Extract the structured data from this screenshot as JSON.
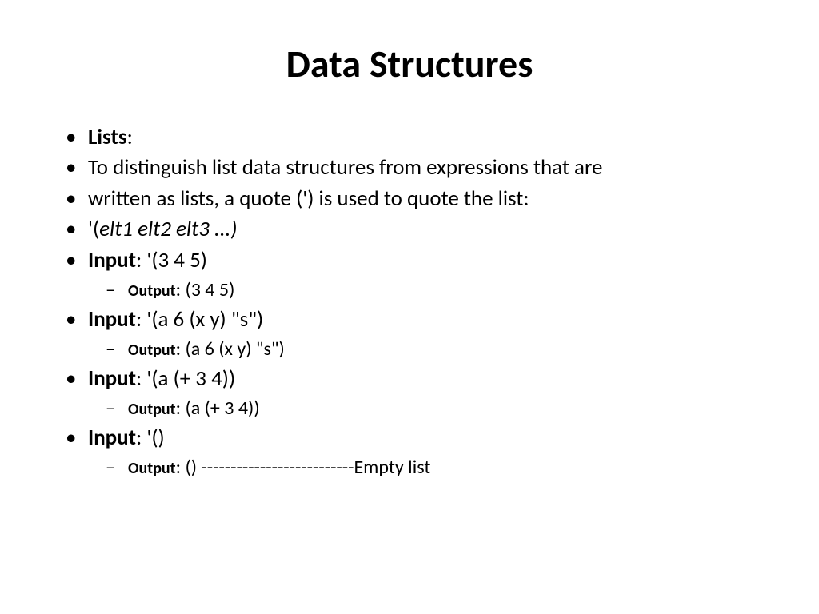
{
  "title": "Data Structures",
  "bullets": {
    "b1_bold": "Lists",
    "b1_rest": ":",
    "b2": "To distinguish list data structures from expressions that are",
    "b3": "written as lists, a quote (') is used to quote the list:",
    "b4_prefix": "'(",
    "b4_italic": "elt1 elt2 elt3 ...)",
    "b5_bold": "Input",
    "b5_rest": ": '(3 4 5)",
    "b5_out_label": "Output",
    "b5_out_rest": ": (3 4 5)",
    "b6_bold": "Input",
    "b6_rest": ": '(a 6 (x y) \"s\")",
    "b6_out_label": "Output",
    "b6_out_rest": ": (a 6 (x y) \"s\")",
    "b7_bold": "Input",
    "b7_rest": ": '(a (+ 3 4))",
    "b7_out_label": "Output",
    "b7_out_rest": ": (a (+ 3 4))",
    "b8_bold": "Input",
    "b8_rest": ": '()",
    "b8_out_label": "Output",
    "b8_out_rest": ": () --------------------------Empty list"
  }
}
